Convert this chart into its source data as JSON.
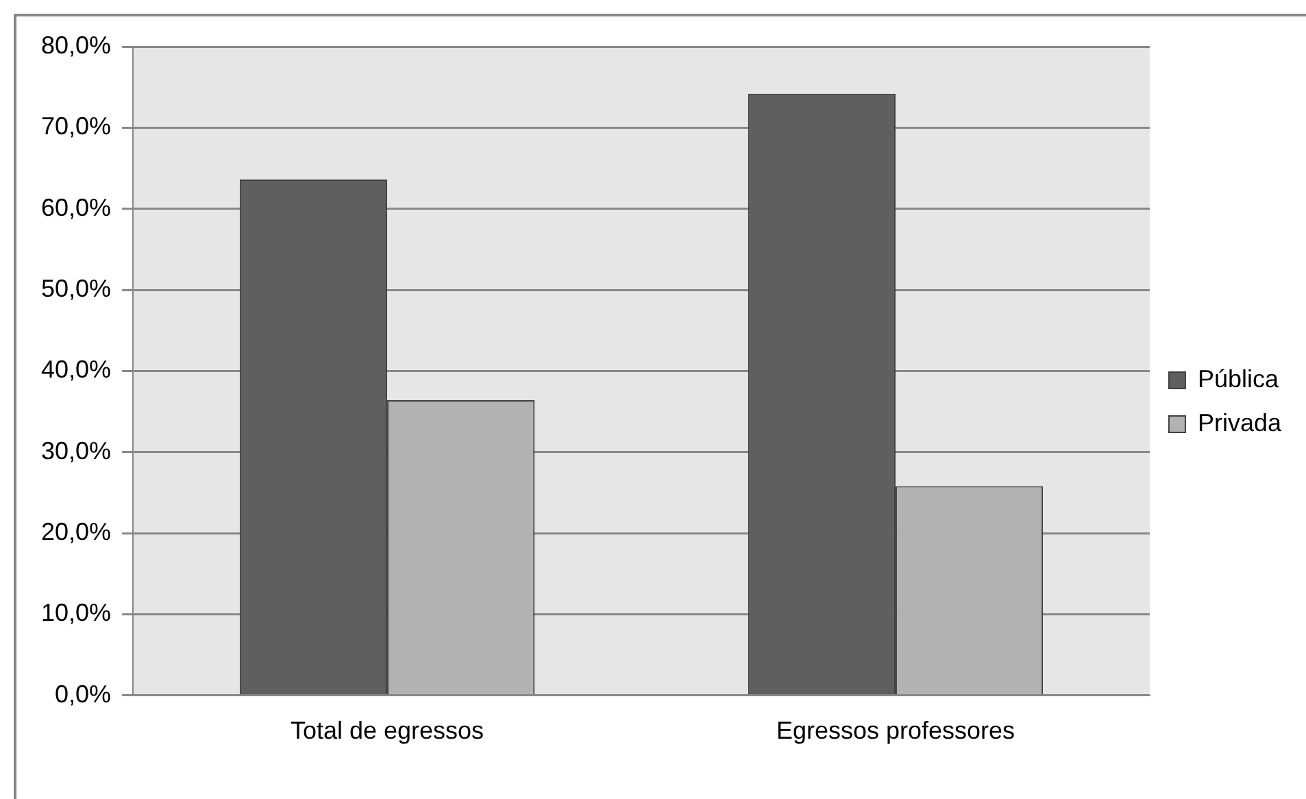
{
  "chart_data": {
    "type": "bar",
    "categories": [
      "Total de egressos",
      "Egressos professores"
    ],
    "series": [
      {
        "name": "Pública",
        "color": "#5f5f5f",
        "values": [
          63.6,
          74.2
        ]
      },
      {
        "name": "Privada",
        "color": "#b2b2b2",
        "values": [
          36.4,
          25.8
        ]
      }
    ],
    "ylim": [
      0,
      80
    ],
    "yticks": [
      {
        "value": 0,
        "label": "0,0%"
      },
      {
        "value": 10,
        "label": "10,0%"
      },
      {
        "value": 20,
        "label": "20,0%"
      },
      {
        "value": 30,
        "label": "30,0%"
      },
      {
        "value": 40,
        "label": "40,0%"
      },
      {
        "value": 50,
        "label": "50,0%"
      },
      {
        "value": 60,
        "label": "60,0%"
      },
      {
        "value": 70,
        "label": "70,0%"
      },
      {
        "value": 80,
        "label": "80,0%"
      }
    ],
    "grid": "y",
    "legend": "right"
  }
}
